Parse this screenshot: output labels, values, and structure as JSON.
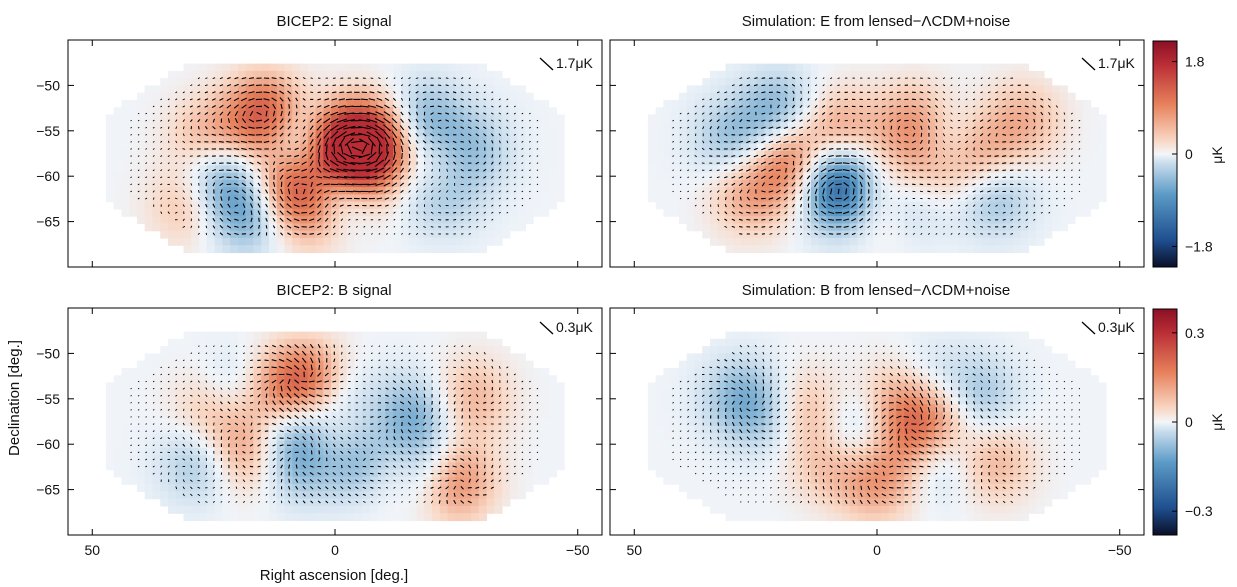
{
  "chart_data": [
    {
      "type": "heatmap",
      "title": "BICEP2: E signal",
      "scale_label": "1.7μK",
      "xlim": [
        55,
        -55
      ],
      "ylim": [
        -70,
        -45
      ],
      "x_ticks": [
        "50",
        "0",
        "−50"
      ],
      "x_tick_values": [
        50,
        0,
        -50
      ],
      "y_ticks": [
        "−50",
        "−55",
        "−60",
        "−65"
      ],
      "y_tick_values": [
        -50,
        -55,
        -60,
        -65
      ],
      "ylabel": "",
      "xlabel": "",
      "blobs": [
        {
          "ra": 14,
          "dec": -53.5,
          "amp": 1.6
        },
        {
          "ra": 0,
          "dec": -56.5,
          "amp": 1.3
        },
        {
          "ra": -4,
          "dec": -58.5,
          "amp": 1.5
        },
        {
          "ra": -8,
          "dec": -56,
          "amp": 1.4
        },
        {
          "ra": 8,
          "dec": -56,
          "amp": -1.2
        },
        {
          "ra": -2,
          "dec": -61,
          "amp": -1.3
        },
        {
          "ra": -14,
          "dec": -60.5,
          "amp": -1.1
        },
        {
          "ra": -20,
          "dec": -60,
          "amp": 1.2
        },
        {
          "ra": -22,
          "dec": -61.5,
          "amp": -1.0
        },
        {
          "ra": 10,
          "dec": -60.5,
          "amp": 1.1
        },
        {
          "ra": -10,
          "dec": -61,
          "amp": 1.0
        },
        {
          "ra": 24,
          "dec": -60,
          "amp": -0.9
        },
        {
          "ra": 5,
          "dec": -63.5,
          "amp": 0.9
        },
        {
          "ra": 18,
          "dec": -64,
          "amp": -0.9
        },
        {
          "ra": -18,
          "dec": -54,
          "amp": -0.8
        },
        {
          "ra": 26,
          "dec": -56,
          "amp": 0.7
        },
        {
          "ra": -28,
          "dec": -57,
          "amp": -0.6
        },
        {
          "ra": 30,
          "dec": -63,
          "amp": 0.6
        }
      ]
    },
    {
      "type": "heatmap",
      "title": "Simulation: E from lensed−ΛCDM+noise",
      "scale_label": "1.7μK",
      "xlim": [
        55,
        -55
      ],
      "ylim": [
        -70,
        -45
      ],
      "x_ticks": [
        "50",
        "0",
        "−50"
      ],
      "x_tick_values": [
        50,
        0,
        -50
      ],
      "y_ticks": [],
      "y_tick_values": [
        -50,
        -55,
        -60,
        -65
      ],
      "ylabel": "",
      "xlabel": "",
      "blobs": [
        {
          "ra": 16,
          "dec": -58.5,
          "amp": 1.8
        },
        {
          "ra": 12,
          "dec": -59,
          "amp": -1.4
        },
        {
          "ra": 6,
          "dec": -62,
          "amp": -1.6
        },
        {
          "ra": 0,
          "dec": -62.5,
          "amp": 1.2
        },
        {
          "ra": -6,
          "dec": -62,
          "amp": -1.1
        },
        {
          "ra": -10,
          "dec": -59.5,
          "amp": 1.1
        },
        {
          "ra": -14,
          "dec": -57,
          "amp": -1.0
        },
        {
          "ra": -20,
          "dec": -58,
          "amp": 1.0
        },
        {
          "ra": -8,
          "dec": -54.5,
          "amp": 0.9
        },
        {
          "ra": 8,
          "dec": -55,
          "amp": 0.8
        },
        {
          "ra": 20,
          "dec": -53,
          "amp": -0.8
        },
        {
          "ra": -24,
          "dec": -62,
          "amp": -0.7
        },
        {
          "ra": 26,
          "dec": -62,
          "amp": 0.7
        },
        {
          "ra": 30,
          "dec": -56,
          "amp": -0.6
        },
        {
          "ra": -30,
          "dec": -54,
          "amp": 0.6
        }
      ]
    },
    {
      "type": "heatmap",
      "title": "BICEP2: B signal",
      "scale_label": "0.3μK",
      "xlim": [
        55,
        -55
      ],
      "ylim": [
        -70,
        -45
      ],
      "x_ticks": [
        "50",
        "0",
        "−50"
      ],
      "x_tick_values": [
        50,
        0,
        -50
      ],
      "y_ticks": [
        "−50",
        "−55",
        "−60",
        "−65"
      ],
      "y_tick_values": [
        -50,
        -55,
        -60,
        -65
      ],
      "ylabel": "Declination [deg.]",
      "xlabel": "Right ascension [deg.]",
      "blobs": [
        {
          "ra": 6,
          "dec": -53.5,
          "amp": 1.5
        },
        {
          "ra": 24,
          "dec": -56,
          "amp": 1.1
        },
        {
          "ra": 21,
          "dec": -55,
          "amp": -1.2
        },
        {
          "ra": 14,
          "dec": -55.5,
          "amp": 1.0
        },
        {
          "ra": 10,
          "dec": -57.5,
          "amp": -0.9
        },
        {
          "ra": 0,
          "dec": -56,
          "amp": -1.0
        },
        {
          "ra": -2,
          "dec": -58.5,
          "amp": 1.0
        },
        {
          "ra": -6,
          "dec": -61.5,
          "amp": -1.3
        },
        {
          "ra": -12,
          "dec": -62.5,
          "amp": 1.0
        },
        {
          "ra": -18,
          "dec": -63,
          "amp": -1.1
        },
        {
          "ra": -24,
          "dec": -64,
          "amp": 1.2
        },
        {
          "ra": -16,
          "dec": -57,
          "amp": -0.8
        },
        {
          "ra": 18,
          "dec": -61,
          "amp": 0.8
        },
        {
          "ra": 8,
          "dec": -62,
          "amp": -0.7
        },
        {
          "ra": 28,
          "dec": -62,
          "amp": -0.6
        },
        {
          "ra": -28,
          "dec": -55,
          "amp": 0.6
        }
      ]
    },
    {
      "type": "heatmap",
      "title": "Simulation: B from lensed−ΛCDM+noise",
      "scale_label": "0.3μK",
      "xlim": [
        55,
        -55
      ],
      "ylim": [
        -70,
        -45
      ],
      "x_ticks": [
        "50",
        "0",
        "−50"
      ],
      "x_tick_values": [
        50,
        0,
        -50
      ],
      "y_ticks": [],
      "y_tick_values": [
        -50,
        -55,
        -60,
        -65
      ],
      "ylabel": "",
      "xlabel": "",
      "blobs": [
        {
          "ra": -6,
          "dec": -55,
          "amp": 1.0
        },
        {
          "ra": -10,
          "dec": -54,
          "amp": -0.9
        },
        {
          "ra": -14,
          "dec": -56,
          "amp": 0.9
        },
        {
          "ra": -20,
          "dec": -55,
          "amp": -0.8
        },
        {
          "ra": 16,
          "dec": -56.5,
          "amp": 0.9
        },
        {
          "ra": 20,
          "dec": -57,
          "amp": -0.7
        },
        {
          "ra": -8,
          "dec": -59.5,
          "amp": 1.0
        },
        {
          "ra": -12,
          "dec": -61.5,
          "amp": -0.7
        },
        {
          "ra": 4,
          "dec": -59,
          "amp": -0.6
        },
        {
          "ra": 0,
          "dec": -64,
          "amp": 0.8
        },
        {
          "ra": 28,
          "dec": -55,
          "amp": -0.7
        },
        {
          "ra": -24,
          "dec": -62,
          "amp": 0.6
        },
        {
          "ra": 10,
          "dec": -62,
          "amp": 0.5
        }
      ]
    }
  ],
  "colorbars": [
    {
      "ticks": [
        "1.8",
        "0",
        "−1.8"
      ],
      "tick_values": [
        1.8,
        0,
        -1.8
      ],
      "range": [
        -2.2,
        2.2
      ],
      "unit": "μK"
    },
    {
      "ticks": [
        "0.3",
        "0",
        "−0.3"
      ],
      "tick_values": [
        0.3,
        0,
        -0.3
      ],
      "range": [
        -0.38,
        0.38
      ],
      "unit": "μK"
    }
  ],
  "colors": {
    "positive": "#a2182a",
    "mid_positive": "#f2a07f",
    "zero": "#f4f6f9",
    "mid_negative": "#8bb8d7",
    "negative": "#1f4f8f",
    "extreme_negative": "#0a0f28"
  }
}
